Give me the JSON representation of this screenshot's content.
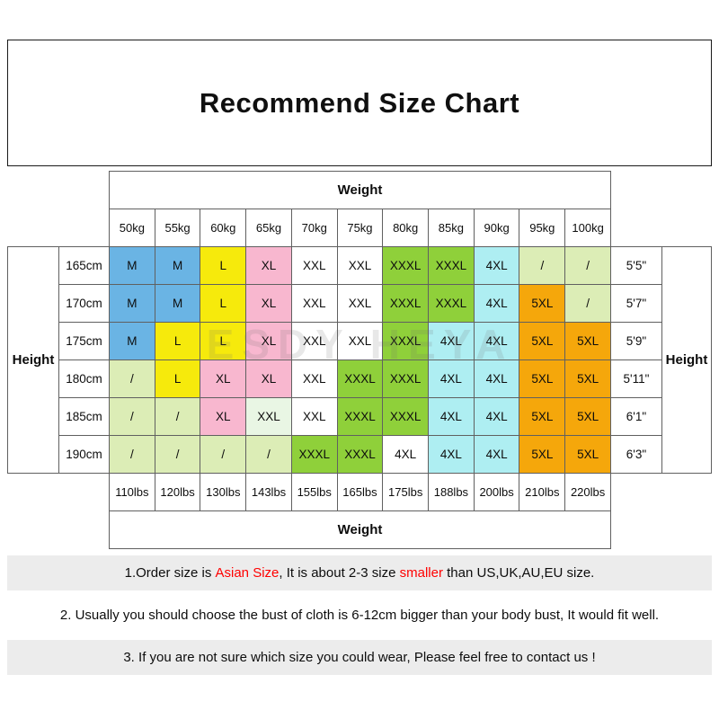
{
  "title": "Recommend Size Chart",
  "watermark": "ESDY HEYA",
  "colors": {
    "blue": "#6ab4e4",
    "yellow": "#f6ea0c",
    "pink": "#f8b7cf",
    "white": "#ffffff",
    "green": "#8fd03a",
    "cyan": "#aeeef2",
    "lightgreen": "#dcedb6",
    "palegreen": "#e9f6e4",
    "orange": "#f5a70b"
  },
  "chart_data": {
    "type": "table",
    "title": "Recommend Size Chart",
    "weight_label_top": "Weight",
    "weight_label_bottom": "Weight",
    "height_label_left": "Height",
    "height_label_right": "Height",
    "kg_labels": [
      "50kg",
      "55kg",
      "60kg",
      "65kg",
      "70kg",
      "75kg",
      "80kg",
      "85kg",
      "90kg",
      "95kg",
      "100kg"
    ],
    "lbs_labels": [
      "110lbs",
      "120lbs",
      "130lbs",
      "143lbs",
      "155lbs",
      "165lbs",
      "175lbs",
      "188lbs",
      "200lbs",
      "210lbs",
      "220lbs"
    ],
    "rows": [
      {
        "cm": "165cm",
        "ft": "5'5\"",
        "cells": [
          {
            "t": "M",
            "c": "blue"
          },
          {
            "t": "M",
            "c": "blue"
          },
          {
            "t": "L",
            "c": "yellow"
          },
          {
            "t": "XL",
            "c": "pink"
          },
          {
            "t": "XXL",
            "c": "white"
          },
          {
            "t": "XXL",
            "c": "white"
          },
          {
            "t": "XXXL",
            "c": "green"
          },
          {
            "t": "XXXL",
            "c": "green"
          },
          {
            "t": "4XL",
            "c": "cyan"
          },
          {
            "t": "/",
            "c": "lightgreen"
          },
          {
            "t": "/",
            "c": "lightgreen"
          }
        ]
      },
      {
        "cm": "170cm",
        "ft": "5'7\"",
        "cells": [
          {
            "t": "M",
            "c": "blue"
          },
          {
            "t": "M",
            "c": "blue"
          },
          {
            "t": "L",
            "c": "yellow"
          },
          {
            "t": "XL",
            "c": "pink"
          },
          {
            "t": "XXL",
            "c": "white"
          },
          {
            "t": "XXL",
            "c": "white"
          },
          {
            "t": "XXXL",
            "c": "green"
          },
          {
            "t": "XXXL",
            "c": "green"
          },
          {
            "t": "4XL",
            "c": "cyan"
          },
          {
            "t": "5XL",
            "c": "orange"
          },
          {
            "t": "/",
            "c": "lightgreen"
          }
        ]
      },
      {
        "cm": "175cm",
        "ft": "5'9\"",
        "cells": [
          {
            "t": "M",
            "c": "blue"
          },
          {
            "t": "L",
            "c": "yellow"
          },
          {
            "t": "L",
            "c": "yellow"
          },
          {
            "t": "XL",
            "c": "pink"
          },
          {
            "t": "XXL",
            "c": "white"
          },
          {
            "t": "XXL",
            "c": "white"
          },
          {
            "t": "XXXL",
            "c": "green"
          },
          {
            "t": "4XL",
            "c": "cyan"
          },
          {
            "t": "4XL",
            "c": "cyan"
          },
          {
            "t": "5XL",
            "c": "orange"
          },
          {
            "t": "5XL",
            "c": "orange"
          }
        ]
      },
      {
        "cm": "180cm",
        "ft": "5'11\"",
        "cells": [
          {
            "t": "/",
            "c": "lightgreen"
          },
          {
            "t": "L",
            "c": "yellow"
          },
          {
            "t": "XL",
            "c": "pink"
          },
          {
            "t": "XL",
            "c": "pink"
          },
          {
            "t": "XXL",
            "c": "white"
          },
          {
            "t": "XXXL",
            "c": "green"
          },
          {
            "t": "XXXL",
            "c": "green"
          },
          {
            "t": "4XL",
            "c": "cyan"
          },
          {
            "t": "4XL",
            "c": "cyan"
          },
          {
            "t": "5XL",
            "c": "orange"
          },
          {
            "t": "5XL",
            "c": "orange"
          }
        ]
      },
      {
        "cm": "185cm",
        "ft": "6'1\"",
        "cells": [
          {
            "t": "/",
            "c": "lightgreen"
          },
          {
            "t": "/",
            "c": "lightgreen"
          },
          {
            "t": "XL",
            "c": "pink"
          },
          {
            "t": "XXL",
            "c": "palegreen"
          },
          {
            "t": "XXL",
            "c": "white"
          },
          {
            "t": "XXXL",
            "c": "green"
          },
          {
            "t": "XXXL",
            "c": "green"
          },
          {
            "t": "4XL",
            "c": "cyan"
          },
          {
            "t": "4XL",
            "c": "cyan"
          },
          {
            "t": "5XL",
            "c": "orange"
          },
          {
            "t": "5XL",
            "c": "orange"
          }
        ]
      },
      {
        "cm": "190cm",
        "ft": "6'3\"",
        "cells": [
          {
            "t": "/",
            "c": "lightgreen"
          },
          {
            "t": "/",
            "c": "lightgreen"
          },
          {
            "t": "/",
            "c": "lightgreen"
          },
          {
            "t": "/",
            "c": "lightgreen"
          },
          {
            "t": "XXXL",
            "c": "green"
          },
          {
            "t": "XXXL",
            "c": "green"
          },
          {
            "t": "4XL",
            "c": "white"
          },
          {
            "t": "4XL",
            "c": "cyan"
          },
          {
            "t": "4XL",
            "c": "cyan"
          },
          {
            "t": "5XL",
            "c": "orange"
          },
          {
            "t": "5XL",
            "c": "orange"
          }
        ]
      }
    ]
  },
  "notes": [
    {
      "bg": "gray",
      "segments": [
        {
          "text": "1.Order size is ",
          "red": false
        },
        {
          "text": "Asian Size",
          "red": true
        },
        {
          "text": ", It is about 2-3 size ",
          "red": false
        },
        {
          "text": "smaller",
          "red": true
        },
        {
          "text": " than US,UK,AU,EU size.",
          "red": false
        }
      ]
    },
    {
      "bg": "white",
      "segments": [
        {
          "text": "2. Usually you should choose the bust of cloth is 6-12cm bigger than your body bust, It would fit well.",
          "red": false
        }
      ]
    },
    {
      "bg": "gray",
      "segments": [
        {
          "text": "3. If you are not sure which size you could wear, Please feel free to contact us !",
          "red": false
        }
      ]
    }
  ]
}
